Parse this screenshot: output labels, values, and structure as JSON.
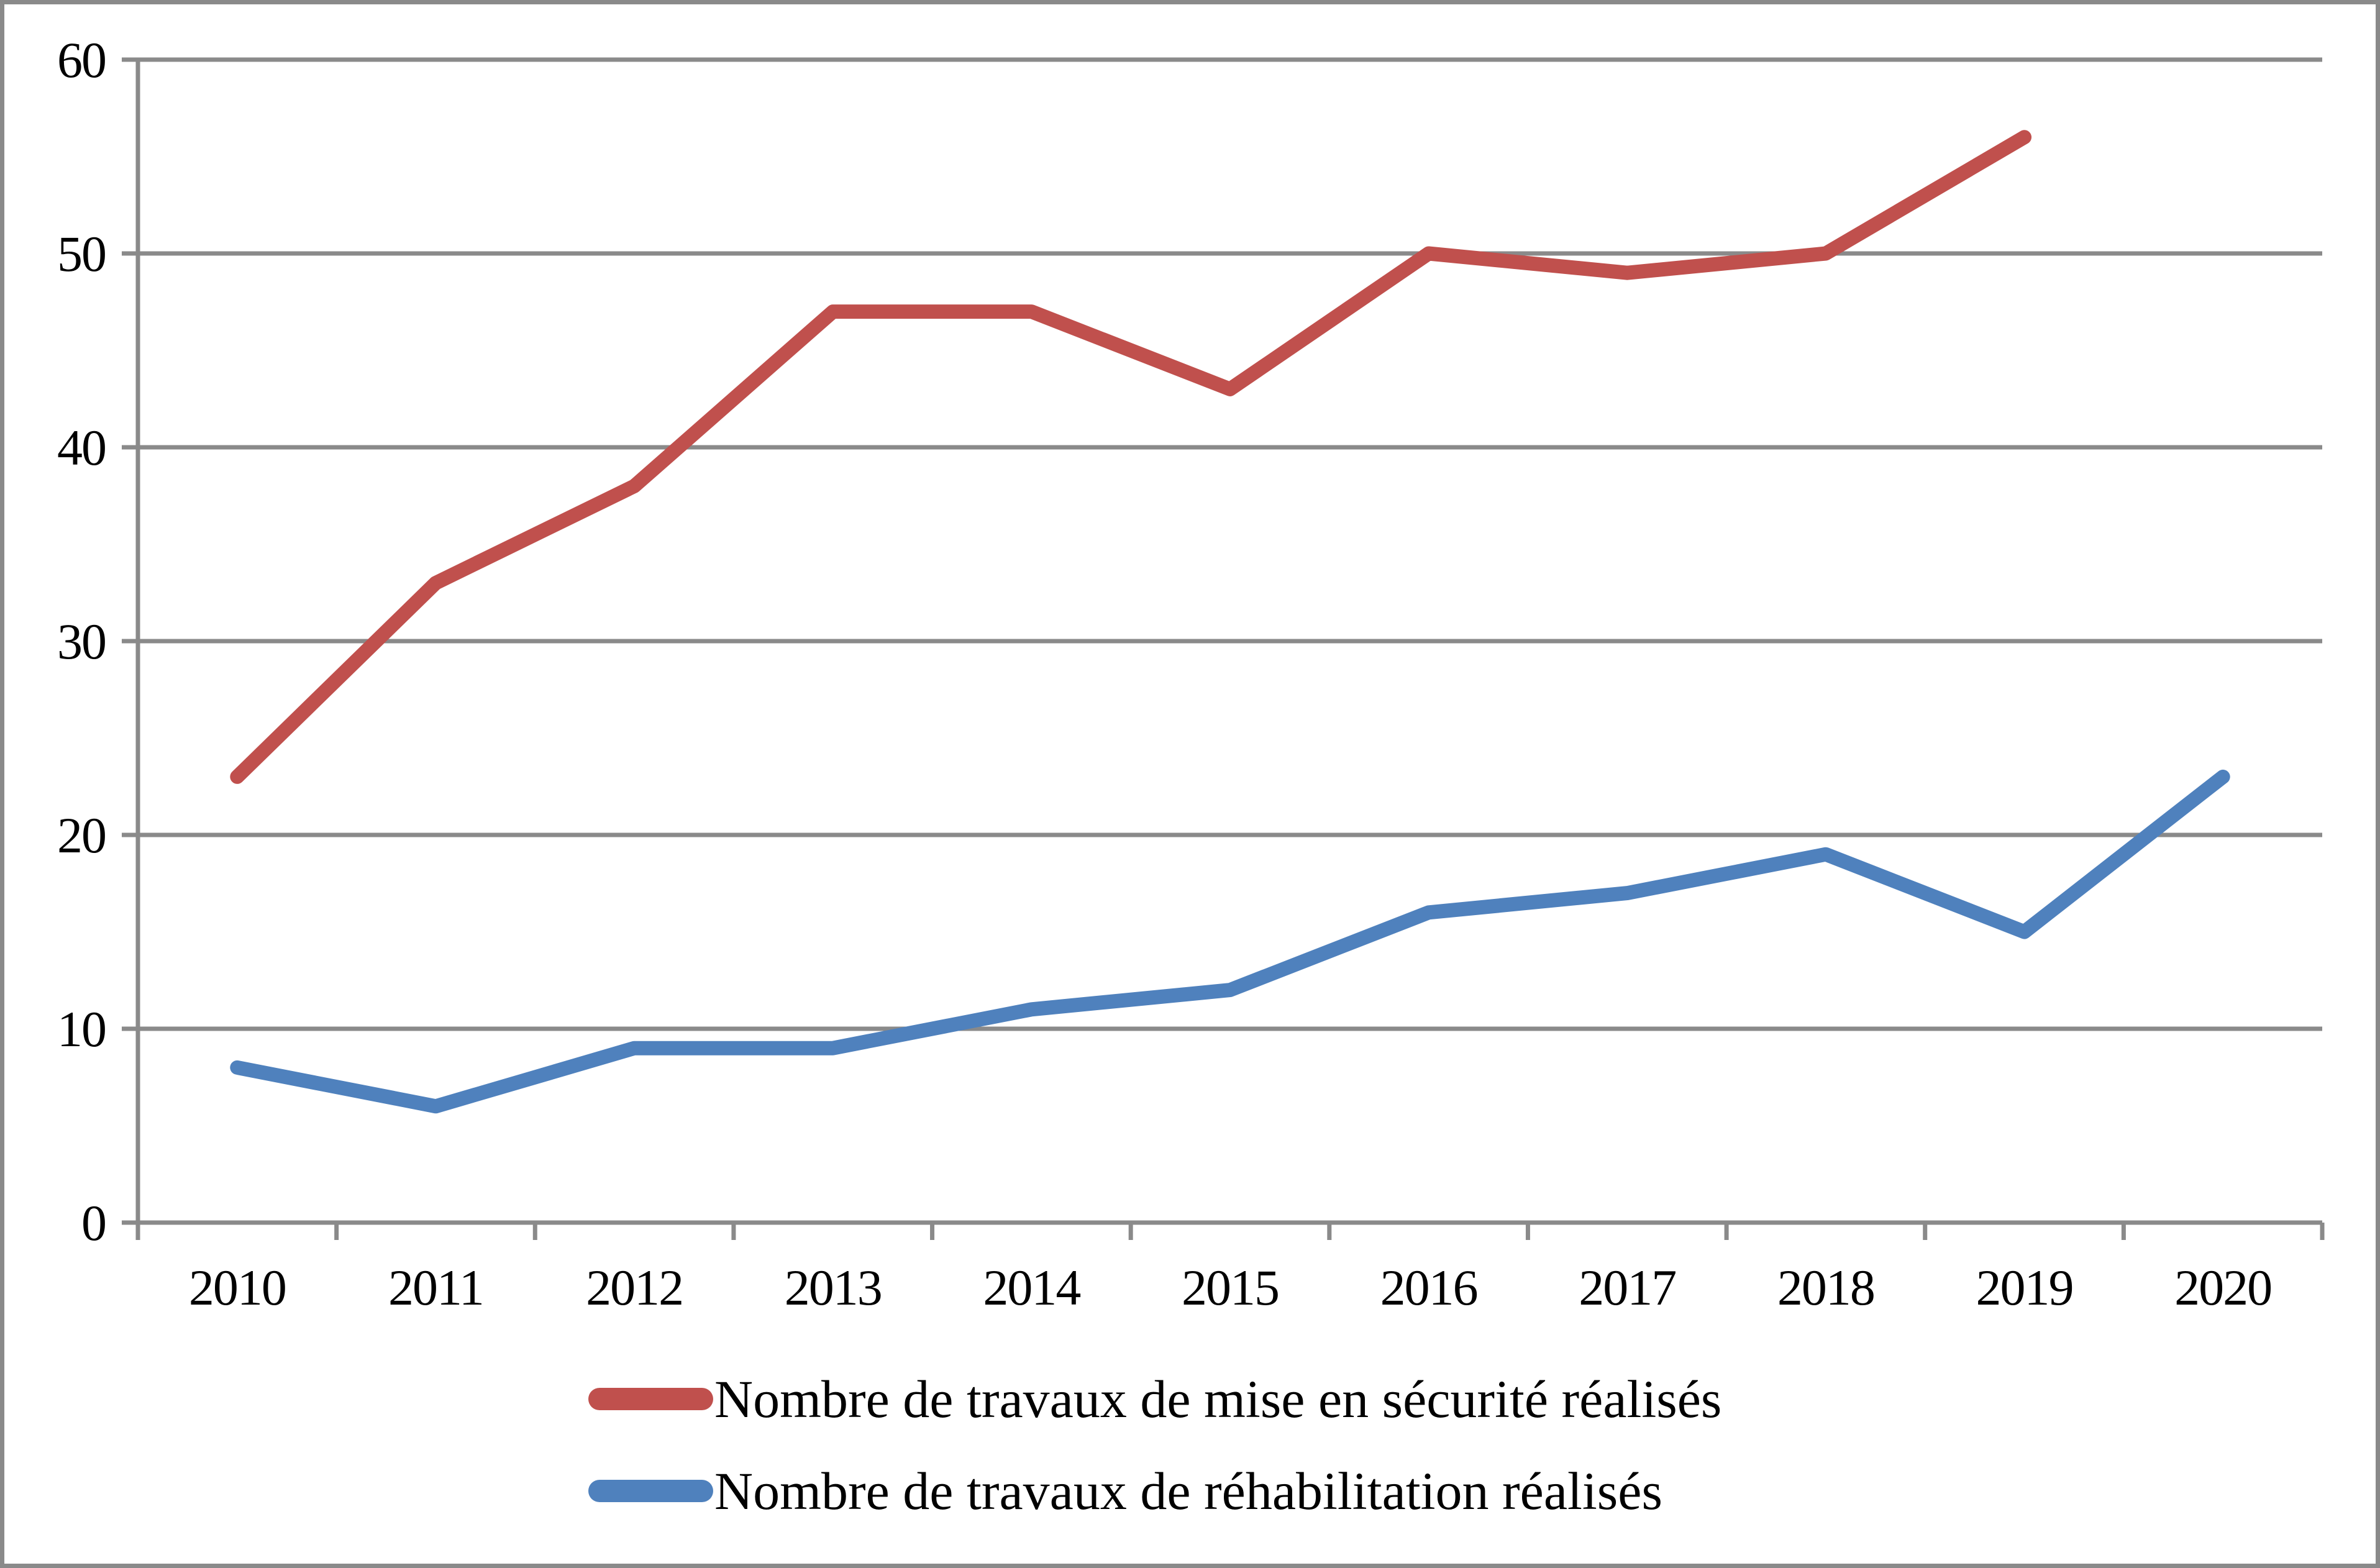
{
  "chart_data": {
    "type": "line",
    "title": "",
    "categories": [
      "2010",
      "2011",
      "2012",
      "2013",
      "2014",
      "2015",
      "2016",
      "2017",
      "2018",
      "2019",
      "2020"
    ],
    "series": [
      {
        "name": "Nombre de travaux de mise en sécurité réalisés",
        "color": "#C0504D",
        "values": [
          23,
          33,
          38,
          47,
          47,
          43,
          50,
          49,
          50,
          56,
          null
        ]
      },
      {
        "name": "Nombre de travaux de réhabilitation réalisés",
        "color": "#4F81BD",
        "values": [
          8,
          6,
          9,
          9,
          11,
          12,
          16,
          17,
          19,
          15,
          23
        ]
      }
    ],
    "ylim": [
      0,
      60
    ],
    "yticks": [
      "0",
      "10",
      "20",
      "30",
      "40",
      "50",
      "60"
    ],
    "ytick_step": 10,
    "grid": "horizontal",
    "legend_position": "bottom",
    "axis_color": "#8A8A8A",
    "gridline_color": "#8A8A8A",
    "frame_color": "#8A8A8A",
    "text_color": "#000000"
  }
}
